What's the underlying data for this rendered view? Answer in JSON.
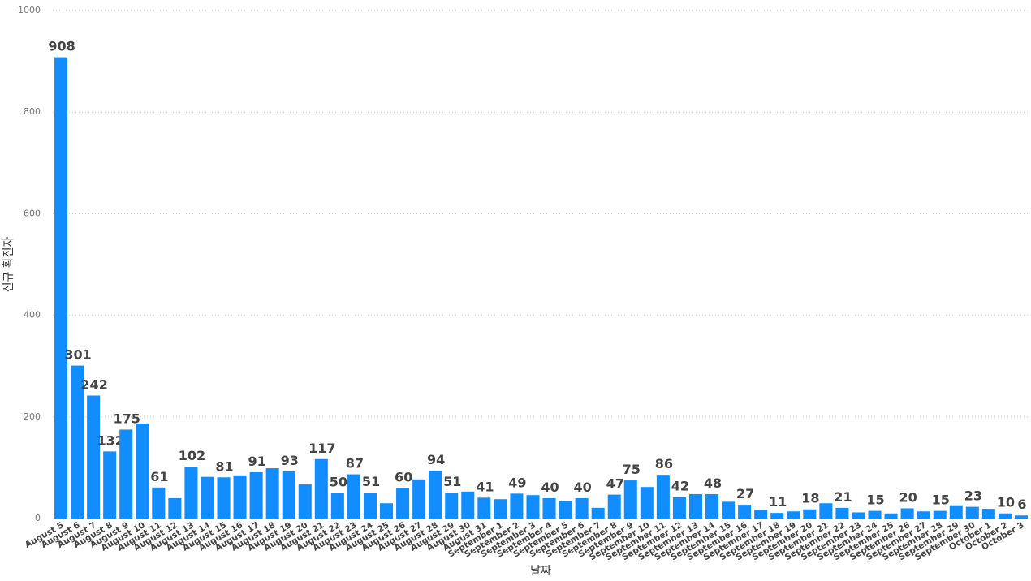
{
  "chart_data": {
    "type": "bar",
    "x_label": "날짜",
    "y_label": "신규 확진자",
    "categories": [
      "August 5",
      "August 6",
      "August 7",
      "August 8",
      "August 9",
      "August 10",
      "August 11",
      "August 12",
      "August 13",
      "August 14",
      "August 15",
      "August 16",
      "August 17",
      "August 18",
      "August 19",
      "August 20",
      "August 21",
      "August 22",
      "August 23",
      "August 24",
      "August 25",
      "August 26",
      "August 27",
      "August 28",
      "August 29",
      "August 30",
      "August 31",
      "September 1",
      "September 2",
      "September 3",
      "September 4",
      "September 5",
      "September 6",
      "September 7",
      "September 8",
      "September 9",
      "September 10",
      "September 11",
      "September 12",
      "September 13",
      "September 14",
      "September 15",
      "September 16",
      "September 17",
      "September 18",
      "September 19",
      "September 20",
      "September 21",
      "September 22",
      "September 23",
      "September 24",
      "September 25",
      "September 26",
      "September 27",
      "September 28",
      "September 29",
      "September 30",
      "October 1",
      "October 2",
      "October 3"
    ],
    "values": [
      908,
      301,
      242,
      132,
      175,
      187,
      61,
      40,
      102,
      82,
      81,
      85,
      91,
      99,
      93,
      67,
      117,
      50,
      87,
      51,
      30,
      60,
      77,
      94,
      51,
      53,
      41,
      38,
      49,
      46,
      40,
      34,
      40,
      21,
      47,
      75,
      62,
      86,
      42,
      48,
      48,
      33,
      27,
      17,
      11,
      14,
      18,
      30,
      21,
      12,
      15,
      10,
      20,
      14,
      15,
      26,
      23,
      19,
      10,
      6
    ],
    "value_labels": [
      "908",
      "301",
      "242",
      "132",
      "175",
      null,
      "61",
      null,
      "102",
      null,
      "81",
      null,
      "91",
      null,
      "93",
      null,
      "117",
      "50",
      "87",
      "51",
      null,
      "60",
      null,
      "94",
      "51",
      null,
      "41",
      null,
      "49",
      null,
      "40",
      null,
      "40",
      null,
      "47",
      "75",
      null,
      "86",
      "42",
      null,
      "48",
      null,
      "27",
      null,
      "11",
      null,
      "18",
      null,
      "21",
      null,
      "15",
      null,
      "20",
      null,
      "15",
      null,
      "23",
      null,
      "10",
      "6"
    ],
    "color": "#118dff",
    "ylim": [
      0,
      1000
    ],
    "yticks": [
      0,
      200,
      400,
      600,
      800,
      1000
    ],
    "grid": true
  }
}
